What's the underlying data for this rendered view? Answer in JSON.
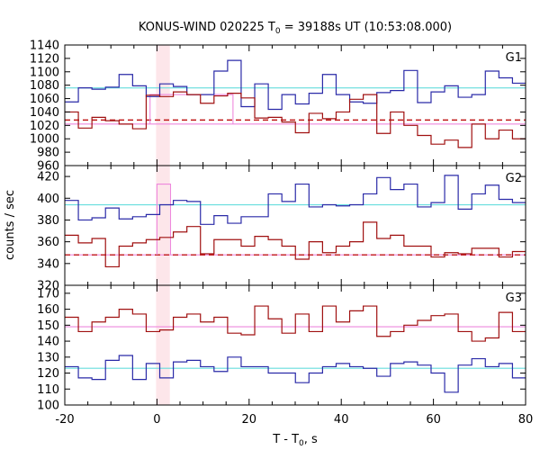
{
  "chart_data": {
    "type": "line",
    "title": "KONUS-WIND 020225 T",
    "title_sub": "0",
    "title_rest": " = 39188s UT (10:53:08.000)",
    "xlabel": "T - T",
    "xlabel_sub": "0",
    "xlabel_rest": ", s",
    "ylabel": "counts / sec",
    "xlim": [
      -20,
      80
    ],
    "xticks": [
      -20,
      0,
      20,
      40,
      60,
      80
    ],
    "shade_interval": [
      -0.2,
      2.8
    ],
    "bin_width": 2.944,
    "bin_start": -20,
    "colors": {
      "blue": "#2a2aa8",
      "red": "#a01010",
      "cyan": "#66dddd",
      "pink": "#ee88dd",
      "shade": "#fde6ea",
      "dashed": "#c01818"
    },
    "panels": [
      {
        "label": "G1",
        "ylim": [
          960,
          1140
        ],
        "yticks": [
          960,
          980,
          1000,
          1020,
          1040,
          1060,
          1080,
          1100,
          1120,
          1140
        ],
        "series": [
          {
            "color": "blue",
            "values": [
              1055,
              1076,
              1074,
              1077,
              1096,
              1079,
              1063,
              1082,
              1078,
              1066,
              1066,
              1101,
              1117,
              1048,
              1082,
              1044,
              1066,
              1052,
              1068,
              1096,
              1066,
              1055,
              1053,
              1069,
              1072,
              1102,
              1054,
              1070,
              1079,
              1062,
              1066,
              1101,
              1091,
              1083,
              1039,
              1029
            ]
          },
          {
            "color": "red",
            "values": [
              1040,
              1016,
              1032,
              1027,
              1022,
              1015,
              1065,
              1063,
              1070,
              1066,
              1053,
              1064,
              1068,
              1061,
              1031,
              1032,
              1025,
              1009,
              1038,
              1030,
              1040,
              1059,
              1066,
              1008,
              1040,
              1020,
              1005,
              992,
              998,
              987,
              1022,
              1000,
              1013,
              1000,
              1015,
              1020
            ]
          }
        ],
        "hlines": [
          {
            "color": "cyan",
            "y": 1076,
            "style": "solid"
          },
          {
            "color": "pink",
            "y": 1022,
            "style": "solid"
          },
          {
            "color": "dashed",
            "y": 1028,
            "style": "dashed"
          }
        ],
        "spikes": [
          {
            "color": "pink",
            "x0": -1.5,
            "x1": 16.5,
            "y": 1066,
            "base": 1022
          }
        ]
      },
      {
        "label": "G2",
        "ylim": [
          320,
          430
        ],
        "yticks": [
          320,
          340,
          360,
          380,
          400,
          420
        ],
        "series": [
          {
            "color": "blue",
            "values": [
              398,
              380,
              382,
              391,
              381,
              383,
              385,
              394,
              398,
              397,
              376,
              384,
              377,
              383,
              383,
              404,
              397,
              413,
              392,
              394,
              393,
              394,
              404,
              419,
              408,
              413,
              392,
              396,
              421,
              390,
              404,
              412,
              399,
              396,
              400,
              391
            ]
          },
          {
            "color": "red",
            "values": [
              366,
              359,
              363,
              337,
              356,
              359,
              362,
              364,
              369,
              374,
              349,
              362,
              362,
              356,
              365,
              362,
              356,
              344,
              360,
              350,
              356,
              360,
              378,
              363,
              366,
              356,
              356,
              346,
              350,
              349,
              354,
              354,
              346,
              351,
              341,
              354
            ]
          }
        ],
        "hlines": [
          {
            "color": "cyan",
            "y": 394,
            "style": "solid"
          },
          {
            "color": "pink",
            "y": 348,
            "style": "solid"
          },
          {
            "color": "dashed",
            "y": 348,
            "style": "dashed"
          }
        ],
        "spikes": [
          {
            "color": "pink",
            "x0": 0.0,
            "x1": 2.944,
            "y": 413,
            "base": 348
          }
        ]
      },
      {
        "label": "G3",
        "ylim": [
          100,
          175
        ],
        "yticks": [
          100,
          110,
          120,
          130,
          140,
          150,
          160,
          170
        ],
        "series": [
          {
            "color": "blue",
            "values": [
              124,
              117,
              116,
              128,
              131,
              116,
              126,
              117,
              127,
              128,
              124,
              121,
              130,
              124,
              124,
              120,
              120,
              114,
              120,
              124,
              126,
              124,
              123,
              118,
              126,
              127,
              125,
              120,
              108,
              125,
              129,
              124,
              126,
              117,
              130,
              122
            ]
          },
          {
            "color": "red",
            "values": [
              155,
              146,
              152,
              155,
              160,
              157,
              146,
              147,
              155,
              157,
              152,
              155,
              145,
              144,
              162,
              154,
              145,
              157,
              146,
              162,
              152,
              159,
              162,
              143,
              146,
              150,
              153,
              156,
              157,
              146,
              140,
              142,
              158,
              146,
              163,
              143
            ]
          }
        ],
        "hlines": [
          {
            "color": "cyan",
            "y": 123,
            "style": "solid"
          },
          {
            "color": "pink",
            "y": 149,
            "style": "solid"
          }
        ],
        "spikes": []
      }
    ]
  }
}
